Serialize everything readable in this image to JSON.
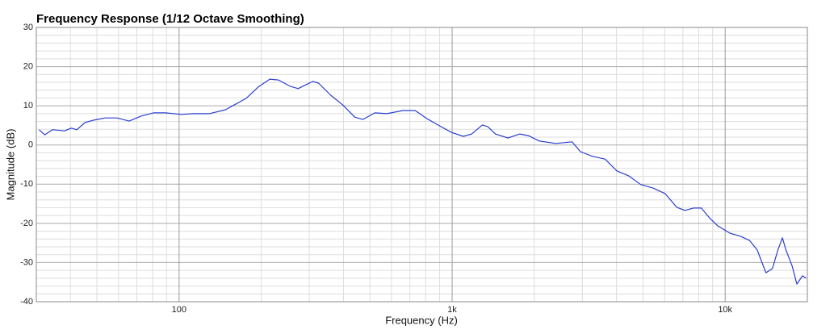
{
  "chart_data": {
    "type": "line",
    "title": "Frequency Response (1/12 Octave Smoothing)",
    "x_label": "Frequency (Hz)",
    "y_label": "Magnitude (dB)",
    "x_scale": "log",
    "grid": true,
    "minor_grid": true,
    "xlim": [
      30,
      20000
    ],
    "xticks": [
      100,
      {
        "value": 1000,
        "label": "1k"
      },
      {
        "value": 10000,
        "label": "10k"
      }
    ],
    "ylim": [
      -40,
      30
    ],
    "yticks": [
      -40,
      -30,
      -20,
      -10,
      0,
      10,
      20,
      30
    ],
    "x": [
      30.7,
      32.2,
      34.4,
      38.1,
      40.3,
      42.2,
      45.2,
      48.4,
      53.5,
      59.3,
      65.6,
      72.7,
      80.5,
      89.1,
      102,
      113,
      129,
      148,
      159,
      176,
      195,
      215,
      231,
      255,
      273,
      292,
      309,
      324,
      359,
      398,
      440,
      471,
      521,
      577,
      661,
      732,
      810,
      898,
      995,
      1100,
      1180,
      1290,
      1350,
      1440,
      1600,
      1770,
      1900,
      2090,
      2400,
      2570,
      2750,
      2950,
      3270,
      3630,
      4010,
      4440,
      4910,
      5440,
      6020,
      6650,
      7120,
      7650,
      8180,
      8760,
      9380,
      10400,
      11400,
      12300,
      13100,
      14100,
      14900,
      15600,
      16200,
      16700,
      17600,
      18300,
      19200,
      19800
    ],
    "series": [
      {
        "name": "Magnitude",
        "color": "#2b3fd0",
        "values": [
          3.9,
          2.6,
          3.9,
          3.6,
          4.3,
          3.9,
          5.7,
          6.3,
          6.9,
          6.9,
          6.1,
          7.4,
          8.2,
          8.2,
          7.8,
          8.0,
          8.0,
          9.0,
          10.2,
          11.9,
          14.8,
          16.8,
          16.6,
          15.0,
          14.4,
          15.4,
          16.2,
          15.8,
          12.7,
          10.2,
          7.1,
          6.5,
          8.2,
          8.0,
          8.8,
          8.8,
          6.7,
          4.9,
          3.2,
          2.2,
          2.8,
          5.1,
          4.7,
          2.8,
          1.8,
          2.8,
          2.4,
          1.0,
          0.4,
          0.6,
          0.8,
          -1.7,
          -2.9,
          -3.6,
          -6.6,
          -7.9,
          -10.1,
          -11.0,
          -12.4,
          -15.9,
          -16.7,
          -16.1,
          -16.1,
          -18.6,
          -20.6,
          -22.5,
          -23.3,
          -24.4,
          -26.8,
          -32.6,
          -31.5,
          -26.8,
          -23.7,
          -26.8,
          -30.9,
          -35.5,
          -33.4,
          -34.0
        ]
      }
    ]
  }
}
